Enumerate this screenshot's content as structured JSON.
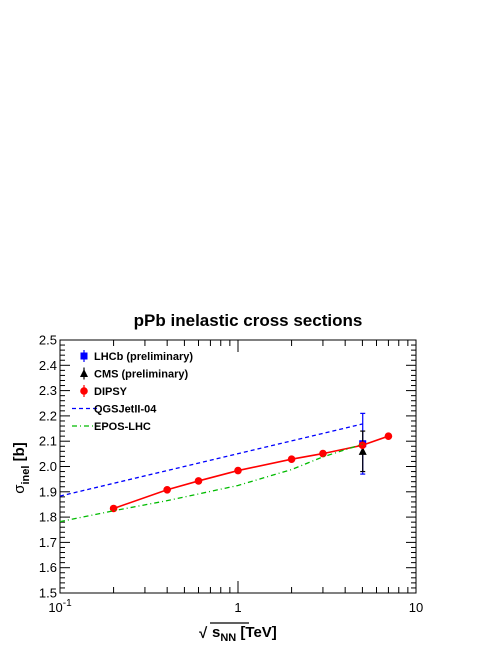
{
  "chart_data": {
    "type": "line",
    "title": "pPb inelastic cross sections",
    "xlabel": {
      "radical": "√",
      "main": "s",
      "sub": "NN",
      "unit": "[TeV]"
    },
    "ylabel": {
      "main": "σ",
      "sub": "inel",
      "unit": "[b]"
    },
    "xscale": "log",
    "xlim": [
      0.1,
      10
    ],
    "ylim": [
      1.5,
      2.5
    ],
    "x_ticks": [
      {
        "value": 0.1,
        "label": "10",
        "exp": "-1"
      },
      {
        "value": 1,
        "label": "1"
      },
      {
        "value": 10,
        "label": "10"
      }
    ],
    "y_ticks": [
      "1.5",
      "1.6",
      "1.7",
      "1.8",
      "1.9",
      "2.0",
      "2.1",
      "2.2",
      "2.3",
      "2.4",
      "2.5"
    ],
    "grid": false,
    "legend_position": "top-left",
    "series": [
      {
        "name": "LHCb (preliminary)",
        "kind": "point-errorbar",
        "marker": "square",
        "color": "#0000ff",
        "points": [
          {
            "x": 5.02,
            "y": 2.09,
            "err": 0.12
          }
        ]
      },
      {
        "name": "CMS (preliminary)",
        "kind": "point-errorbar",
        "marker": "triangle",
        "color": "#000000",
        "points": [
          {
            "x": 5.02,
            "y": 2.06,
            "err": 0.08
          }
        ]
      },
      {
        "name": "DIPSY",
        "kind": "line-markers",
        "marker": "circle",
        "color": "#ff0000",
        "x": [
          0.2,
          0.4,
          0.6,
          1.0,
          2.0,
          3.0,
          5.0,
          7.0
        ],
        "y": [
          1.834,
          1.908,
          1.943,
          1.984,
          2.029,
          2.051,
          2.084,
          2.12
        ]
      },
      {
        "name": "QGSJetII-04",
        "kind": "dashed",
        "color": "#0000ff",
        "x": [
          0.1,
          5.0
        ],
        "y": [
          1.883,
          2.168
        ]
      },
      {
        "name": "EPOS-LHC",
        "kind": "dashdot",
        "color": "#00bb00",
        "x": [
          0.1,
          0.2,
          0.4,
          1.0,
          2.0,
          3.0,
          5.0
        ],
        "y": [
          1.782,
          1.825,
          1.865,
          1.925,
          1.988,
          2.038,
          2.088
        ]
      }
    ]
  }
}
